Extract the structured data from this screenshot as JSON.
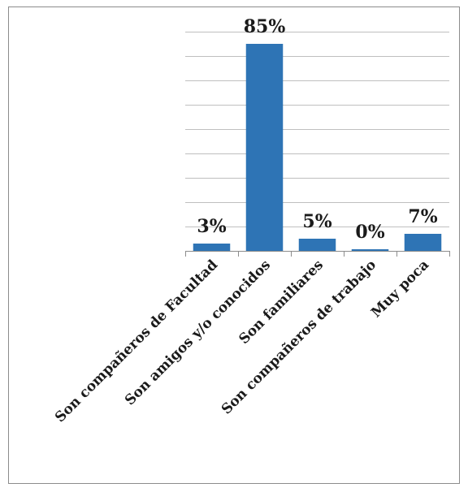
{
  "chart_data": {
    "type": "bar",
    "categories": [
      "Son compañeros de Facultad",
      "Son amigos y/o conocidos",
      "Son familiares",
      "Son compañeros de trabajo",
      "Muy poca"
    ],
    "values": [
      3,
      85,
      5,
      0,
      7
    ],
    "data_labels": [
      "3%",
      "85%",
      "5%",
      "0%",
      "7%"
    ],
    "ylim": [
      0,
      90
    ],
    "grid": true,
    "colors": {
      "bar": "#2e74b5"
    }
  }
}
